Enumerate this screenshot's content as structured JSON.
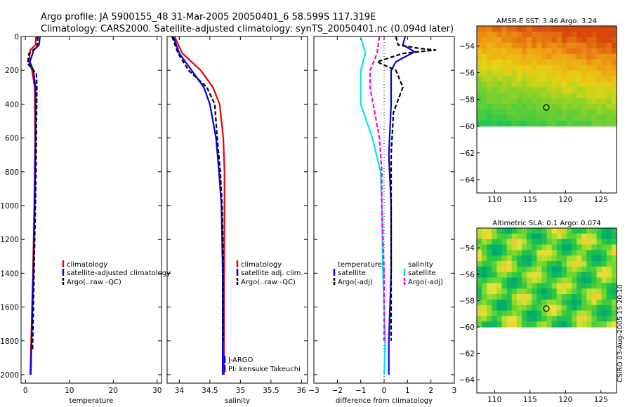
{
  "header": {
    "title_line1": "Argo profile: JA 5900155_48 31-Mar-2005 20050401_6 58.599S 117.319E",
    "title_line2": "Climatology: CARS2000. Satellite-adjusted climatology: synTS_20050401.nc (0.094d later)"
  },
  "watermark": "CSIRO 03-Aug-2005 15:20:10",
  "colors": {
    "red": "#e8000b",
    "blue": "#0000ee",
    "black": "#000000",
    "cyan": "#00e5ee",
    "magenta": "#ee00ee"
  },
  "chart_data": [
    {
      "type": "line",
      "title": "",
      "xlabel": "temperature",
      "ylabel": "",
      "xlim": [
        -1,
        31
      ],
      "ylim": [
        2050,
        0
      ],
      "xticks": [
        0,
        10,
        20,
        30
      ],
      "yticks": [
        0,
        200,
        400,
        600,
        800,
        1000,
        1200,
        1400,
        1600,
        1800,
        2000
      ],
      "legend": [
        "climatology",
        "satellite-adjusted climatology",
        "Argo(..raw -QC)"
      ],
      "series": [
        {
          "name": "climatology",
          "color": "red",
          "dash": "",
          "points": [
            [
              2.4,
              0
            ],
            [
              2.3,
              50
            ],
            [
              1.1,
              80
            ],
            [
              0.8,
              150
            ],
            [
              1.5,
              200
            ],
            [
              2.1,
              300
            ],
            [
              2.2,
              600
            ],
            [
              2.0,
              1000
            ],
            [
              1.7,
              1400
            ],
            [
              1.3,
              1800
            ],
            [
              1.1,
              2000
            ]
          ]
        },
        {
          "name": "satellite-adjusted climatology",
          "color": "blue",
          "dash": "",
          "points": [
            [
              3.3,
              0
            ],
            [
              3.1,
              50
            ],
            [
              1.9,
              80
            ],
            [
              1.0,
              150
            ],
            [
              1.8,
              200
            ],
            [
              2.3,
              300
            ],
            [
              2.3,
              600
            ],
            [
              2.1,
              1000
            ],
            [
              1.8,
              1400
            ],
            [
              1.4,
              1800
            ],
            [
              1.2,
              2000
            ]
          ]
        },
        {
          "name": "Argo(..raw -QC)",
          "color": "black",
          "dash": "6,3",
          "points": [
            [
              2.8,
              0
            ],
            [
              2.7,
              60
            ],
            [
              0.8,
              100
            ],
            [
              0.5,
              160
            ],
            [
              2.5,
              220
            ],
            [
              2.6,
              300
            ],
            [
              2.5,
              500
            ],
            [
              2.4,
              800
            ],
            [
              2.1,
              1200
            ],
            [
              1.8,
              1600
            ],
            [
              1.6,
              1850
            ]
          ]
        }
      ]
    },
    {
      "type": "line",
      "title": "",
      "xlabel": "salinity",
      "ylabel": "",
      "xlim": [
        33.8,
        36.1
      ],
      "ylim": [
        2050,
        0
      ],
      "xticks": [
        34,
        34.5,
        35,
        35.5,
        36
      ],
      "yticks": [],
      "legend": [
        "climatology",
        "satellite adj. clim.",
        "Argo(..raw -QC)"
      ],
      "series": [
        {
          "name": "climatology",
          "color": "red",
          "dash": "",
          "points": [
            [
              33.92,
              0
            ],
            [
              34.05,
              100
            ],
            [
              34.35,
              200
            ],
            [
              34.55,
              300
            ],
            [
              34.66,
              400
            ],
            [
              34.72,
              600
            ],
            [
              34.74,
              800
            ],
            [
              34.74,
              1000
            ],
            [
              34.73,
              1500
            ],
            [
              34.73,
              2000
            ]
          ]
        },
        {
          "name": "satellite adj. clim.",
          "color": "blue",
          "dash": "",
          "points": [
            [
              33.9,
              0
            ],
            [
              34.0,
              100
            ],
            [
              34.2,
              200
            ],
            [
              34.4,
              300
            ],
            [
              34.5,
              400
            ],
            [
              34.6,
              600
            ],
            [
              34.65,
              800
            ],
            [
              34.69,
              1000
            ],
            [
              34.71,
              1400
            ],
            [
              34.71,
              1800
            ],
            [
              34.71,
              2000
            ]
          ]
        },
        {
          "name": "Argo(..raw -QC)",
          "color": "black",
          "dash": "6,3",
          "points": [
            [
              33.88,
              0
            ],
            [
              33.98,
              100
            ],
            [
              34.15,
              200
            ],
            [
              34.45,
              300
            ],
            [
              34.58,
              400
            ],
            [
              34.62,
              600
            ],
            [
              34.67,
              800
            ],
            [
              34.7,
              1000
            ],
            [
              34.72,
              1400
            ],
            [
              34.72,
              1800
            ]
          ]
        }
      ],
      "annotations": [
        "J-ARGO",
        "PI: kensuke Takeuchi"
      ]
    },
    {
      "type": "line",
      "title": "",
      "xlabel": "difference from climatology",
      "ylabel": "",
      "xlim": [
        -3,
        3
      ],
      "ylim": [
        2050,
        0
      ],
      "xticks": [
        -3,
        -2,
        -1,
        0,
        1,
        2,
        3
      ],
      "yticks": [],
      "legend": [
        "temperature",
        "satellite",
        "Argo(-adj)",
        "salinity",
        "satellite",
        "Argo(-adj)"
      ],
      "series": [
        {
          "name": "temperature satellite",
          "color": "blue",
          "dash": "",
          "points": [
            [
              0.9,
              0
            ],
            [
              0.8,
              50
            ],
            [
              1.3,
              90
            ],
            [
              0.5,
              150
            ],
            [
              0.3,
              200
            ],
            [
              0.3,
              400
            ],
            [
              0.2,
              700
            ],
            [
              0.3,
              1000
            ],
            [
              0.3,
              1400
            ],
            [
              0.2,
              1800
            ],
            [
              0.2,
              2000
            ]
          ]
        },
        {
          "name": "temperature Argo(-adj)",
          "color": "black",
          "dash": "6,3",
          "points": [
            [
              0.5,
              0
            ],
            [
              0.6,
              50
            ],
            [
              1.5,
              70
            ],
            [
              2.2,
              80
            ],
            [
              0.8,
              100
            ],
            [
              -0.3,
              150
            ],
            [
              0.5,
              200
            ],
            [
              0.8,
              300
            ],
            [
              0.4,
              450
            ],
            [
              0.3,
              700
            ],
            [
              0.3,
              1000
            ],
            [
              0.3,
              1400
            ],
            [
              0.3,
              1800
            ]
          ]
        },
        {
          "name": "salinity satellite",
          "color": "cyan",
          "dash": "",
          "points": [
            [
              -1.0,
              0
            ],
            [
              -0.8,
              100
            ],
            [
              -1.0,
              200
            ],
            [
              -1.0,
              400
            ],
            [
              -0.5,
              600
            ],
            [
              -0.15,
              800
            ],
            [
              -0.1,
              1000
            ],
            [
              -0.05,
              1400
            ],
            [
              0.05,
              1800
            ],
            [
              0.0,
              2000
            ]
          ]
        },
        {
          "name": "salinity Argo(-adj)",
          "color": "magenta",
          "dash": "6,3",
          "points": [
            [
              -0.2,
              0
            ],
            [
              -0.3,
              100
            ],
            [
              -0.6,
              200
            ],
            [
              -0.6,
              300
            ],
            [
              -0.4,
              450
            ],
            [
              -0.2,
              600
            ],
            [
              -0.1,
              800
            ],
            [
              -0.1,
              1000
            ],
            [
              0.0,
              1400
            ],
            [
              0.0,
              1800
            ]
          ]
        }
      ]
    },
    {
      "type": "heatmap",
      "title": "AMSR-E SST: 3.46 Argo: 3.24",
      "xlabel": "",
      "ylabel": "",
      "xlim": [
        107.5,
        127.2
      ],
      "ylim": [
        -65,
        -52.5
      ],
      "xticks": [
        110,
        115,
        120,
        125
      ],
      "yticks": [
        -54,
        -56,
        -58,
        -60,
        -62,
        -64
      ],
      "data_extent_lat": [
        -60,
        -52.5
      ],
      "palette": "warm",
      "marker": {
        "lon": 117.3,
        "lat": -58.6
      }
    },
    {
      "type": "heatmap",
      "title": "Altimetric SLA: 0.1 Argo: 0.074",
      "xlabel": "",
      "ylabel": "",
      "xlim": [
        107.5,
        127.2
      ],
      "ylim": [
        -65,
        -52.5
      ],
      "xticks": [
        110,
        115,
        120,
        125
      ],
      "yticks": [
        -54,
        -56,
        -58,
        -60,
        -62,
        -64
      ],
      "data_extent_lat": [
        -60,
        -52.5
      ],
      "palette": "sla",
      "marker": {
        "lon": 117.3,
        "lat": -58.6
      }
    }
  ]
}
